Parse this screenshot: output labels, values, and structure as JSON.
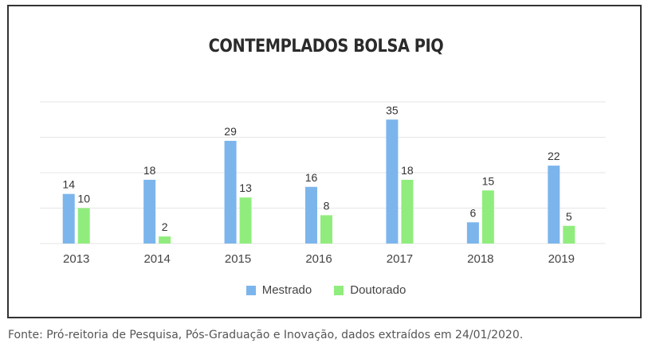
{
  "chart_data": {
    "type": "bar",
    "title": "CONTEMPLADOS BOLSA PIQ",
    "categories": [
      "2013",
      "2014",
      "2015",
      "2016",
      "2017",
      "2018",
      "2019"
    ],
    "series": [
      {
        "name": "Mestrado",
        "values": [
          14,
          18,
          29,
          16,
          35,
          6,
          22
        ],
        "color": "#7cb5ec"
      },
      {
        "name": "Doutorado",
        "values": [
          10,
          2,
          13,
          8,
          18,
          15,
          5
        ],
        "color": "#90ed7d"
      }
    ],
    "ylim": [
      0,
      40
    ],
    "grid": true,
    "legend_position": "bottom-center",
    "xlabel": "",
    "ylabel": ""
  },
  "legend": {
    "mestrado": "Mestrado",
    "doutorado": "Doutorado"
  },
  "colors": {
    "mestrado": "#7cb5ec",
    "doutorado": "#90ed7d",
    "grid": "#e6e6e6",
    "frame": "#333333"
  },
  "footer": {
    "source": "Fonte: Pró-reitoria de Pesquisa, Pós-Graduação e Inovação, dados extraídos em 24/01/2020."
  }
}
